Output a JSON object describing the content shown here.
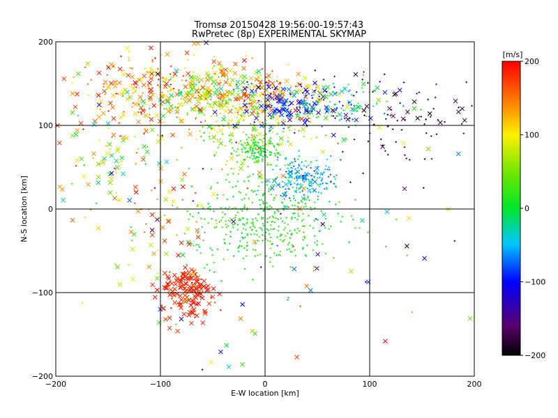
{
  "chart_data": {
    "type": "scatter",
    "title": "Tromsø 20150428 19:56:00-19:57:43",
    "subtitle": "RwPretec (8p) EXPERIMENTAL SKYMAP",
    "xlabel": "E-W location [km]",
    "ylabel": "N-S location [km]",
    "xlim": [
      -200,
      200
    ],
    "ylim": [
      -200,
      200
    ],
    "xticks": [
      -200,
      -100,
      0,
      100,
      200
    ],
    "yticks": [
      -200,
      -100,
      0,
      100,
      200
    ],
    "grid": true,
    "colorbar": {
      "label": "[m/s]",
      "min": -200,
      "max": 200,
      "ticks": [
        200,
        100,
        0,
        -100,
        -200
      ],
      "colormap": "rainbow"
    },
    "marker_types": [
      "x",
      "+"
    ],
    "clusters": [
      {
        "cx": -100,
        "cy": 140,
        "sx": 40,
        "sy": 25,
        "vmin": 80,
        "vmax": 200,
        "n": 260,
        "x_ratio": 0.5
      },
      {
        "cx": -55,
        "cy": 135,
        "sx": 25,
        "sy": 15,
        "vmin": -40,
        "vmax": 120,
        "n": 160,
        "x_ratio": 0.4
      },
      {
        "cx": 0,
        "cy": 130,
        "sx": 30,
        "sy": 20,
        "vmin": 60,
        "vmax": 200,
        "n": 220,
        "x_ratio": 0.35
      },
      {
        "cx": 15,
        "cy": 125,
        "sx": 20,
        "sy": 12,
        "vmin": -130,
        "vmax": -60,
        "n": 110,
        "x_ratio": 0.5
      },
      {
        "cx": 60,
        "cy": 125,
        "sx": 30,
        "sy": 15,
        "vmin": -130,
        "vmax": 40,
        "n": 140,
        "x_ratio": 0.3
      },
      {
        "cx": 130,
        "cy": 105,
        "sx": 40,
        "sy": 30,
        "vmin": -200,
        "vmax": -160,
        "n": 90,
        "x_ratio": 0.3
      },
      {
        "cx": -8,
        "cy": 68,
        "sx": 10,
        "sy": 8,
        "vmin": -10,
        "vmax": 30,
        "n": 120,
        "x_ratio": 0.0
      },
      {
        "cx": -15,
        "cy": 90,
        "sx": 30,
        "sy": 20,
        "vmin": 0,
        "vmax": 110,
        "n": 150,
        "x_ratio": 0.1
      },
      {
        "cx": 35,
        "cy": 38,
        "sx": 15,
        "sy": 12,
        "vmin": -80,
        "vmax": -30,
        "n": 170,
        "x_ratio": 0.15
      },
      {
        "cx": 0,
        "cy": -15,
        "sx": 35,
        "sy": 30,
        "vmin": -10,
        "vmax": 40,
        "n": 420,
        "x_ratio": 0.0
      },
      {
        "cx": -75,
        "cy": -100,
        "sx": 12,
        "sy": 18,
        "vmin": 170,
        "vmax": 200,
        "n": 150,
        "x_ratio": 0.85
      },
      {
        "cx": -150,
        "cy": 70,
        "sx": 30,
        "sy": 40,
        "vmin": -40,
        "vmax": 200,
        "n": 80,
        "x_ratio": 0.6
      },
      {
        "cx": -100,
        "cy": -20,
        "sx": 30,
        "sy": 50,
        "vmin": 0,
        "vmax": 200,
        "n": 70,
        "x_ratio": 0.5
      },
      {
        "cx": 0,
        "cy": 0,
        "sx": 110,
        "sy": 110,
        "vmin": -200,
        "vmax": 200,
        "n": 140,
        "x_ratio": 0.7
      }
    ]
  }
}
